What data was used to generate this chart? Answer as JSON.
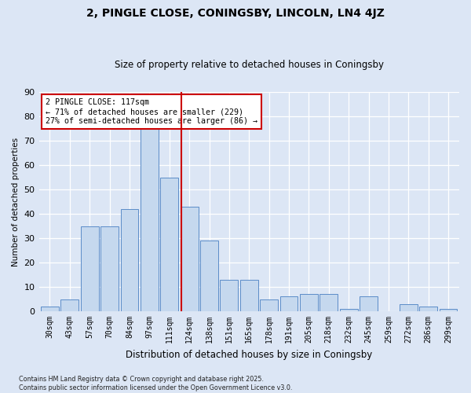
{
  "title": "2, PINGLE CLOSE, CONINGSBY, LINCOLN, LN4 4JZ",
  "subtitle": "Size of property relative to detached houses in Coningsby",
  "xlabel": "Distribution of detached houses by size in Coningsby",
  "ylabel": "Number of detached properties",
  "categories": [
    "30sqm",
    "43sqm",
    "57sqm",
    "70sqm",
    "84sqm",
    "97sqm",
    "111sqm",
    "124sqm",
    "138sqm",
    "151sqm",
    "165sqm",
    "178sqm",
    "191sqm",
    "205sqm",
    "218sqm",
    "232sqm",
    "245sqm",
    "259sqm",
    "272sqm",
    "286sqm",
    "299sqm"
  ],
  "values": [
    2,
    5,
    35,
    35,
    42,
    75,
    55,
    43,
    29,
    13,
    13,
    5,
    6,
    7,
    7,
    1,
    6,
    0,
    3,
    2,
    1
  ],
  "bar_color": "#c5d8ee",
  "bar_edge_color": "#5b8cc8",
  "vline_color": "#cc0000",
  "bg_color": "#dce6f5",
  "annotation_text": "2 PINGLE CLOSE: 117sqm\n← 71% of detached houses are smaller (229)\n27% of semi-detached houses are larger (86) →",
  "annotation_box_color": "#ffffff",
  "annotation_box_edge_color": "#cc0000",
  "footer": "Contains HM Land Registry data © Crown copyright and database right 2025.\nContains public sector information licensed under the Open Government Licence v3.0.",
  "ylim": [
    0,
    90
  ],
  "yticks": [
    0,
    10,
    20,
    30,
    40,
    50,
    60,
    70,
    80,
    90
  ],
  "title_fontsize": 10,
  "subtitle_fontsize": 8.5
}
